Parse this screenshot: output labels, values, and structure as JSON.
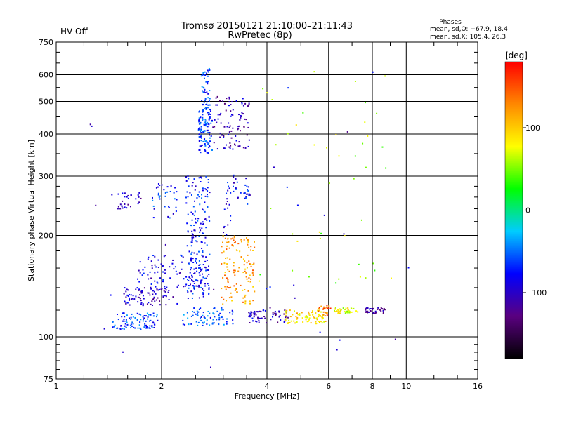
{
  "status_label": "HV Off",
  "title_line1": "Tromsø 20150121 21:10:00–21:11:43",
  "title_line2": "RwPretec (8p)",
  "stats": {
    "heading": "Phases",
    "line1": "mean, sd,O: −67.9, 18.4",
    "line2": "mean, sd,X: 105.4, 26.3"
  },
  "colors": {
    "status": "#cc0000"
  },
  "chart_data": {
    "type": "scatter",
    "xlabel": "Frequency [MHz]",
    "ylabel": "Stationary phase Virtual Height [km]",
    "x_scale": "log",
    "y_scale": "log",
    "xlim": [
      1,
      16
    ],
    "ylim": [
      75,
      750
    ],
    "x_ticks": [
      1,
      2,
      4,
      6,
      8,
      10,
      16
    ],
    "x_tick_labels": [
      "1",
      "2",
      "4",
      "6",
      "8",
      "10",
      "16"
    ],
    "x_gridlines": [
      2,
      4,
      6,
      8,
      10
    ],
    "y_ticks": [
      75,
      100,
      200,
      300,
      400,
      500,
      600,
      750
    ],
    "y_tick_labels": [
      "75",
      "100",
      "200",
      "300",
      "400",
      "500",
      "600",
      "750"
    ],
    "y_gridlines": [
      100,
      200,
      300,
      400,
      500,
      600
    ],
    "grid": true,
    "colorbar": {
      "title": "[deg]",
      "range": [
        -180,
        180
      ],
      "ticks": [
        100,
        0,
        -100
      ],
      "tick_labels": [
        "100",
        "0",
        "−100"
      ],
      "stops": [
        "#000000",
        "#5a0080",
        "#0000ff",
        "#00ccff",
        "#00ff00",
        "#ffff00",
        "#ff8800",
        "#ff0000"
      ]
    },
    "clusters": [
      {
        "x": [
          1.45,
          1.95
        ],
        "y": [
          105,
          118
        ],
        "phase": -60,
        "n": 95
      },
      {
        "x": [
          1.55,
          2.1
        ],
        "y": [
          124,
          140
        ],
        "phase": -100,
        "n": 90
      },
      {
        "x": [
          1.7,
          2.7
        ],
        "y": [
          140,
          175
        ],
        "phase": -90,
        "n": 95
      },
      {
        "x": [
          2.3,
          3.2
        ],
        "y": [
          108,
          122
        ],
        "phase": -60,
        "n": 75
      },
      {
        "x": [
          2.35,
          2.75
        ],
        "y": [
          130,
          300
        ],
        "phase": -75,
        "n": 190
      },
      {
        "x": [
          2.55,
          2.8
        ],
        "y": [
          350,
          480
        ],
        "phase": -65,
        "n": 110
      },
      {
        "x": [
          2.6,
          2.75
        ],
        "y": [
          480,
          640
        ],
        "phase": -60,
        "n": 45
      },
      {
        "x": [
          1.5,
          1.75
        ],
        "y": [
          240,
          270
        ],
        "phase": -100,
        "n": 30
      },
      {
        "x": [
          1.85,
          2.25
        ],
        "y": [
          225,
          285
        ],
        "phase": -70,
        "n": 35
      },
      {
        "x": [
          2.8,
          3.6
        ],
        "y": [
          360,
          520
        ],
        "phase": -105,
        "n": 95
      },
      {
        "x": [
          2.95,
          3.7
        ],
        "y": [
          125,
          200
        ],
        "phase": 120,
        "n": 130
      },
      {
        "x": [
          3.2,
          3.6
        ],
        "y": [
          245,
          305
        ],
        "phase": -80,
        "n": 30
      },
      {
        "x": [
          3.0,
          3.15
        ],
        "y": [
          200,
          290
        ],
        "phase": -85,
        "n": 20
      },
      {
        "x": [
          3.55,
          4.0
        ],
        "y": [
          110,
          120
        ],
        "phase": -100,
        "n": 45
      },
      {
        "x": [
          4.1,
          4.6
        ],
        "y": [
          110,
          120
        ],
        "phase": -110,
        "n": 25
      },
      {
        "x": [
          4.5,
          5.9
        ],
        "y": [
          109,
          120
        ],
        "phase": 95,
        "n": 80
      },
      {
        "x": [
          5.6,
          6.1
        ],
        "y": [
          115,
          124
        ],
        "phase": 140,
        "n": 20
      },
      {
        "x": [
          6.2,
          7.3
        ],
        "y": [
          117,
          122
        ],
        "phase": 75,
        "n": 40
      },
      {
        "x": [
          7.6,
          8.7
        ],
        "y": [
          117,
          122
        ],
        "phase": -110,
        "n": 35
      },
      {
        "x": [
          3.8,
          9.5
        ],
        "y": [
          140,
          620
        ],
        "phase": 60,
        "n": 45
      },
      {
        "x": [
          1.2,
          13
        ],
        "y": [
          80,
          650
        ],
        "phase": -95,
        "n": 35
      }
    ]
  }
}
